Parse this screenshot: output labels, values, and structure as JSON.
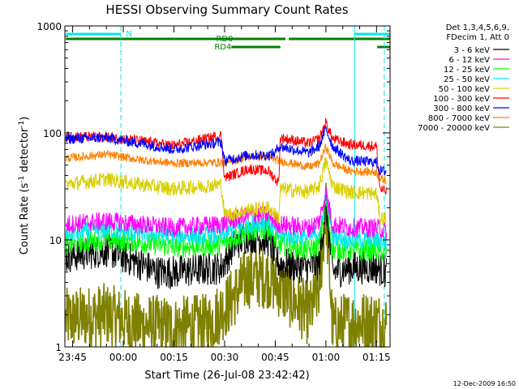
{
  "chart_data": {
    "type": "line",
    "title": "HESSI Observing Summary Count Rates",
    "xlabel": "Start Time (26-Jul-08 23:42:42)",
    "ylabel_main": "Count Rate (s",
    "ylabel_sup1": "-1",
    "ylabel_mid": " detector",
    "ylabel_sup2": "-1",
    "ylabel_end": ")",
    "yscale": "log",
    "ylim": [
      1,
      1000
    ],
    "xlim_minutes": [
      -2.3,
      94.0
    ],
    "x_ticks": [
      {
        "label": "23:45",
        "t": 0
      },
      {
        "label": "00:00",
        "t": 15
      },
      {
        "label": "00:15",
        "t": 30
      },
      {
        "label": "00:30",
        "t": 45
      },
      {
        "label": "00:45",
        "t": 60
      },
      {
        "label": "01:00",
        "t": 75
      },
      {
        "label": "01:15",
        "t": 90
      }
    ],
    "y_ticks": [
      {
        "label": "1",
        "v": 1
      },
      {
        "label": "10",
        "v": 10
      },
      {
        "label": "100",
        "v": 100
      },
      {
        "label": "1000",
        "v": 1000
      }
    ],
    "legend_header": [
      "Det 1,3,4,5,6,9,",
      "FDecim 1, Att 0"
    ],
    "legend_position": "right",
    "series": [
      {
        "name": "3 - 6 keV",
        "color": "#000000"
      },
      {
        "name": "6 - 12 keV",
        "color": "#ff00ff"
      },
      {
        "name": "12 - 25 keV",
        "color": "#00ff00"
      },
      {
        "name": "25 - 50 keV",
        "color": "#00e8e8"
      },
      {
        "name": "50 - 100 keV",
        "color": "#d8d000"
      },
      {
        "name": "100 - 300 keV",
        "color": "#ff0000"
      },
      {
        "name": "300 - 800 keV",
        "color": "#0000ff"
      },
      {
        "name": "800 - 7000 keV",
        "color": "#ff8000"
      },
      {
        "name": "7000 - 20000 keV",
        "color": "#808000"
      }
    ],
    "series_profiles": [
      {
        "name": "300 - 800 keV",
        "points": [
          [
            -2,
            88
          ],
          [
            10,
            90
          ],
          [
            20,
            80
          ],
          [
            30,
            70
          ],
          [
            44,
            82
          ],
          [
            45,
            55
          ],
          [
            52,
            62
          ],
          [
            58,
            62
          ],
          [
            60,
            65
          ],
          [
            61,
            75
          ],
          [
            70,
            65
          ],
          [
            73,
            75
          ],
          [
            75,
            110
          ],
          [
            77,
            75
          ],
          [
            82,
            55
          ],
          [
            90,
            53
          ],
          [
            91,
            44
          ],
          [
            93,
            44
          ]
        ]
      },
      {
        "name": "100 - 300 keV",
        "points": [
          [
            -2,
            92
          ],
          [
            10,
            92
          ],
          [
            20,
            84
          ],
          [
            30,
            76
          ],
          [
            44,
            95
          ],
          [
            45,
            38
          ],
          [
            52,
            46
          ],
          [
            58,
            44
          ],
          [
            61,
            34
          ],
          [
            61.5,
            90
          ],
          [
            70,
            80
          ],
          [
            73,
            88
          ],
          [
            75,
            125
          ],
          [
            77,
            88
          ],
          [
            82,
            78
          ],
          [
            90,
            75
          ],
          [
            91,
            30
          ],
          [
            93,
            28
          ]
        ]
      },
      {
        "name": "800 - 7000 keV",
        "points": [
          [
            -2,
            58
          ],
          [
            10,
            63
          ],
          [
            20,
            56
          ],
          [
            30,
            52
          ],
          [
            44,
            53
          ],
          [
            45,
            52
          ],
          [
            52,
            60
          ],
          [
            58,
            60
          ],
          [
            61,
            55
          ],
          [
            70,
            48
          ],
          [
            73,
            52
          ],
          [
            75,
            75
          ],
          [
            77,
            52
          ],
          [
            82,
            44
          ],
          [
            90,
            43
          ],
          [
            91,
            37
          ],
          [
            93,
            36
          ]
        ]
      },
      {
        "name": "50 - 100 keV",
        "points": [
          [
            -2,
            33
          ],
          [
            10,
            37
          ],
          [
            20,
            33
          ],
          [
            30,
            30
          ],
          [
            44,
            33
          ],
          [
            45,
            17
          ],
          [
            52,
            19
          ],
          [
            58,
            20
          ],
          [
            61,
            16
          ],
          [
            61.5,
            30
          ],
          [
            70,
            28
          ],
          [
            73,
            32
          ],
          [
            75,
            55
          ],
          [
            77,
            32
          ],
          [
            82,
            28
          ],
          [
            90,
            27
          ],
          [
            91,
            16
          ],
          [
            93,
            16
          ]
        ]
      },
      {
        "name": "6 - 12 keV",
        "points": [
          [
            -2,
            14
          ],
          [
            10,
            15
          ],
          [
            20,
            14
          ],
          [
            30,
            13
          ],
          [
            44,
            14
          ],
          [
            52,
            17
          ],
          [
            58,
            17
          ],
          [
            61,
            14
          ],
          [
            70,
            13
          ],
          [
            73,
            15
          ],
          [
            75,
            28
          ],
          [
            77,
            14
          ],
          [
            82,
            13
          ],
          [
            90,
            13
          ],
          [
            93,
            12
          ]
        ]
      },
      {
        "name": "25 - 50 keV",
        "points": [
          [
            -2,
            11.5
          ],
          [
            10,
            12.5
          ],
          [
            20,
            11.5
          ],
          [
            30,
            11
          ],
          [
            44,
            11
          ],
          [
            52,
            14
          ],
          [
            58,
            15
          ],
          [
            61,
            11
          ],
          [
            70,
            10.5
          ],
          [
            73,
            12
          ],
          [
            75,
            27
          ],
          [
            77,
            11
          ],
          [
            82,
            10
          ],
          [
            90,
            10
          ],
          [
            93,
            9.5
          ]
        ]
      },
      {
        "name": "12 - 25 keV",
        "points": [
          [
            -2,
            9
          ],
          [
            10,
            10
          ],
          [
            20,
            9.5
          ],
          [
            30,
            8.5
          ],
          [
            44,
            9
          ],
          [
            52,
            12
          ],
          [
            58,
            12.5
          ],
          [
            61,
            9
          ],
          [
            70,
            8
          ],
          [
            73,
            9
          ],
          [
            75,
            25
          ],
          [
            77,
            8
          ],
          [
            82,
            8
          ],
          [
            90,
            8
          ],
          [
            93,
            7
          ]
        ]
      },
      {
        "name": "3 - 6 keV",
        "points": [
          [
            -2,
            7
          ],
          [
            10,
            8
          ],
          [
            20,
            6
          ],
          [
            25,
            5
          ],
          [
            30,
            5
          ],
          [
            44,
            5.5
          ],
          [
            48,
            9
          ],
          [
            52,
            11
          ],
          [
            58,
            10
          ],
          [
            61,
            6
          ],
          [
            70,
            5.5
          ],
          [
            73,
            6
          ],
          [
            75,
            22
          ],
          [
            77,
            5
          ],
          [
            82,
            5.5
          ],
          [
            90,
            5.5
          ],
          [
            93,
            5
          ]
        ]
      },
      {
        "name": "7000 - 20000 keV",
        "points": [
          [
            -2,
            1.8
          ],
          [
            10,
            2.0
          ],
          [
            20,
            1.6
          ],
          [
            30,
            1.5
          ],
          [
            40,
            1.6
          ],
          [
            46,
            2.5
          ],
          [
            52,
            4.5
          ],
          [
            58,
            4.5
          ],
          [
            64,
            3
          ],
          [
            70,
            2
          ],
          [
            73,
            3.5
          ],
          [
            75,
            20
          ],
          [
            77,
            1.5
          ],
          [
            82,
            1.7
          ],
          [
            90,
            1.7
          ],
          [
            93,
            1.6
          ]
        ]
      }
    ],
    "observing_flags": [
      {
        "label": "N",
        "color": "#00e8e8",
        "segments": [
          [
            -2.0,
            14.3
          ],
          [
            83.5,
            94.0
          ]
        ]
      },
      {
        "label": "RD0",
        "color": "#008000",
        "segments": [
          [
            -2.0,
            63.0
          ],
          [
            64.0,
            94.0
          ]
        ]
      },
      {
        "label": "RD4",
        "color": "#008000",
        "segments": [
          [
            47.0,
            61.5
          ],
          [
            90.2,
            94.0
          ]
        ]
      }
    ],
    "event_lines": [
      {
        "t": 14.3,
        "color": "#00e8e8",
        "style": "dashed"
      },
      {
        "t": 83.5,
        "color": "#00e8e8",
        "style": "solid"
      },
      {
        "t": 92.3,
        "color": "#00e8e8",
        "style": "dashed"
      }
    ]
  },
  "footer": {
    "timestamp": "12-Dec-2009 16:50"
  }
}
